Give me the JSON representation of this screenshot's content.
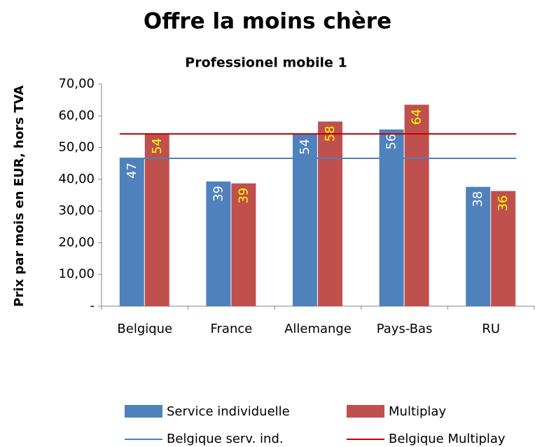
{
  "chart_data": {
    "type": "bar",
    "title": "Offre la moins chère",
    "subtitle": "Professionel mobile 1",
    "y_label": "Prix par mois en EUR, hors TVA",
    "categories": [
      "Belgique",
      "France",
      "Allemange",
      "Pays-Bas",
      "RU"
    ],
    "series": [
      {
        "name": "Service individuelle",
        "color": "#4f81bd",
        "values": [
          46.6,
          39.3,
          54.1,
          55.7,
          37.6
        ],
        "value_labels": [
          "47",
          "39",
          "54",
          "56",
          "38"
        ],
        "label_color": "#ffffff"
      },
      {
        "name": "Multiplay",
        "color": "#c0504d",
        "values": [
          54.3,
          38.7,
          58.2,
          63.5,
          36.3
        ],
        "value_labels": [
          "54",
          "39",
          "58",
          "64",
          "36"
        ],
        "label_color": "#ffff00"
      }
    ],
    "reference_lines": [
      {
        "name": "Belgique serv. ind.",
        "color": "#4f81bd",
        "value": 46.6
      },
      {
        "name": "Belgique Multiplay",
        "color": "#c00000",
        "value": 54.3
      }
    ],
    "ylim": [
      0,
      70
    ],
    "yticks": [
      {
        "value": 0,
        "label": "-"
      },
      {
        "value": 10,
        "label": "10,00"
      },
      {
        "value": 20,
        "label": "20,00"
      },
      {
        "value": 30,
        "label": "30,00"
      },
      {
        "value": 40,
        "label": "40,00"
      },
      {
        "value": 50,
        "label": "50,00"
      },
      {
        "value": 60,
        "label": "60,00"
      },
      {
        "value": 70,
        "label": "70,00"
      }
    ],
    "grid": false,
    "legend": "bottom"
  }
}
